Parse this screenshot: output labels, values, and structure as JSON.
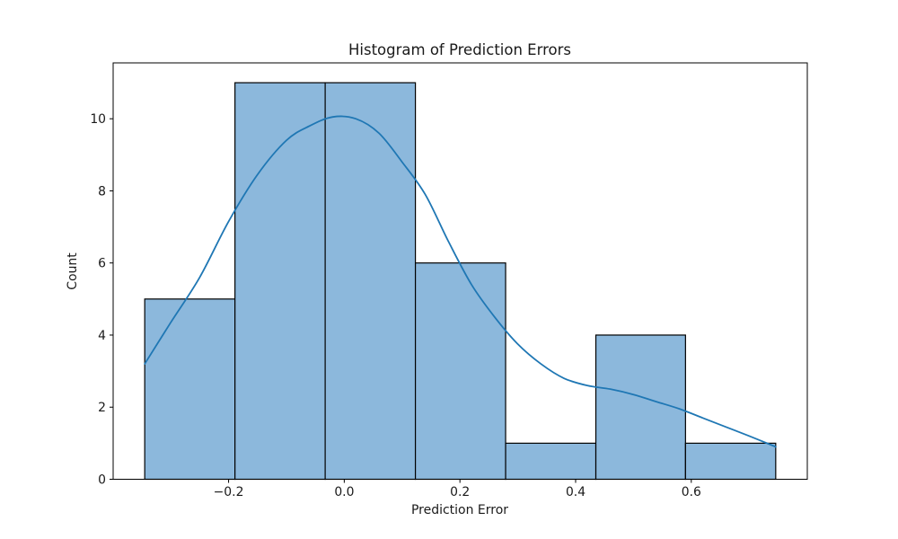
{
  "chart_data": {
    "type": "bar",
    "subtype": "histogram_with_kde",
    "title": "Histogram of Prediction Errors",
    "xlabel": "Prediction Error",
    "ylabel": "Count",
    "bin_edges": [
      -0.345,
      -0.189,
      -0.033,
      0.123,
      0.279,
      0.435,
      0.59,
      0.746
    ],
    "counts": [
      5,
      11,
      11,
      6,
      1,
      4,
      1
    ],
    "kde": {
      "x": [
        -0.345,
        -0.3,
        -0.25,
        -0.2,
        -0.15,
        -0.1,
        -0.06,
        -0.02,
        0.02,
        0.06,
        0.1,
        0.14,
        0.18,
        0.22,
        0.26,
        0.3,
        0.34,
        0.38,
        0.42,
        0.46,
        0.5,
        0.54,
        0.58,
        0.62,
        0.66,
        0.7,
        0.746
      ],
      "y": [
        3.2,
        4.35,
        5.6,
        7.15,
        8.45,
        9.4,
        9.8,
        10.05,
        10.0,
        9.6,
        8.8,
        7.9,
        6.6,
        5.4,
        4.5,
        3.75,
        3.2,
        2.8,
        2.6,
        2.5,
        2.35,
        2.15,
        1.95,
        1.7,
        1.45,
        1.2,
        0.9
      ]
    },
    "x_ticks": [
      -0.2,
      0.0,
      0.2,
      0.4,
      0.6
    ],
    "x_tick_labels": [
      "−0.2",
      "0.0",
      "0.2",
      "0.4",
      "0.6"
    ],
    "y_ticks": [
      0,
      2,
      4,
      6,
      8,
      10
    ],
    "y_tick_labels": [
      "0",
      "2",
      "4",
      "6",
      "8",
      "10"
    ],
    "xlim": [
      -0.3996,
      0.8006
    ],
    "ylim": [
      0,
      11.55
    ],
    "grid": false,
    "legend": null,
    "colors": {
      "bar_fill": "#8cb8dc",
      "bar_edge": "#000000",
      "kde_line": "#1f77b4",
      "spine": "#000000",
      "text": "#1a1a1a",
      "background": "#ffffff"
    }
  }
}
